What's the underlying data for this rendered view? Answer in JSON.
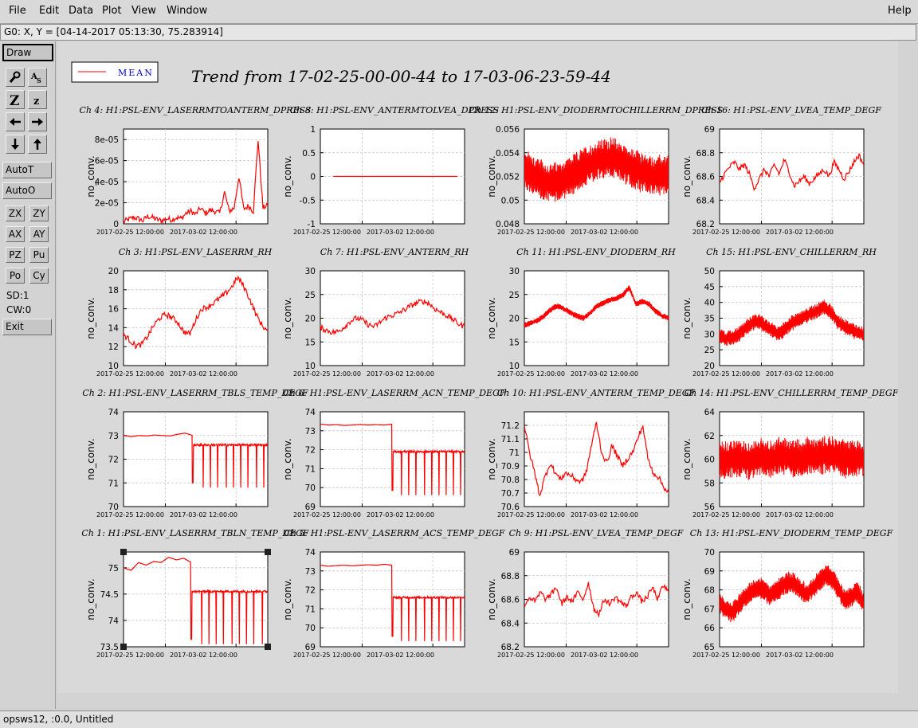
{
  "menu": {
    "items": [
      "File",
      "Edit",
      "Data",
      "Plot",
      "View",
      "Window"
    ],
    "help": "Help"
  },
  "coord_readout": "G0: X, Y = [04-14-2017 05:13:30, 75.283914]",
  "toolbar": {
    "draw": "Draw",
    "autot": "AutoT",
    "autoo": "AutoO",
    "pairs": [
      [
        "ZX",
        "ZY"
      ],
      [
        "AX",
        "AY"
      ],
      [
        "PZ",
        "Pu"
      ],
      [
        "Po",
        "Cy"
      ]
    ],
    "sd": "SD:1",
    "cw": "CW:0",
    "exit": "Exit",
    "icons": [
      "magnify-icon",
      "text-size-icon",
      "zoom-in-icon",
      "zoom-out-icon",
      "arrow-left-icon",
      "arrow-right-icon",
      "arrow-down-icon",
      "arrow-up-icon"
    ]
  },
  "title": "Trend from 17-02-25-00-00-44 to 17-03-06-23-59-44",
  "legend": {
    "label": "MEAN",
    "color": "#ff0000"
  },
  "status": "opsws12, :0.0, Untitled",
  "chart_data": [
    {
      "type": "line",
      "title": "Ch 4: H1:PSL-ENV_LASERRMTOANTERM_DPRESS",
      "ylabel": "no_conv.",
      "ylim": [
        0,
        9e-05
      ],
      "yticks": [
        "0",
        "2e-05",
        "4e-05",
        "6e-05",
        "8e-05"
      ],
      "ytick_values": [
        0,
        2e-05,
        4e-05,
        6e-05,
        8e-05
      ],
      "xticks": [
        "2017-02-25 12:00:00",
        "2017-03-02 12:00:00"
      ],
      "series": [
        {
          "values": [
            2e-06,
            4e-06,
            6e-06,
            5e-06,
            3e-06,
            7e-06,
            6e-06,
            4e-06,
            3e-06,
            5e-06,
            4e-06,
            6e-06,
            5e-06,
            1e-05,
            1.2e-05,
            9e-06,
            1.5e-05,
            1e-05,
            1.3e-05,
            1.2e-05,
            1e-05,
            3e-05,
            1.2e-05,
            1.5e-05,
            4.5e-05,
            1.4e-05,
            1.7e-05,
            1.2e-05,
            8e-05,
            1.5e-05,
            1.8e-05
          ]
        }
      ]
    },
    {
      "type": "line",
      "title": "Ch 8: H1:PSL-ENV_ANTERMTOLVEA_DPRESS",
      "ylabel": "no_conv.",
      "ylim": [
        -1,
        1
      ],
      "yticks": [
        "-1",
        "-0.5",
        "0",
        "0.5",
        "1"
      ],
      "ytick_values": [
        -1,
        -0.5,
        0,
        0.5,
        1
      ],
      "xticks": [
        "2017-02-25 12:00:00",
        "2017-03-02 12:00:00"
      ],
      "x_end": 0.86,
      "series": [
        {
          "values": [
            0,
            0,
            0,
            0,
            0,
            0,
            0,
            0,
            0,
            0
          ]
        }
      ]
    },
    {
      "type": "line",
      "title": "Ch 12: H1:PSL-ENV_DIODERMTOCHILLERRM_DPRESS",
      "ylabel": "no_conv.",
      "ylim": [
        0.048,
        0.056
      ],
      "yticks": [
        "0.048",
        "0.05",
        "0.052",
        "0.054",
        "0.056"
      ],
      "ytick_values": [
        0.048,
        0.05,
        0.052,
        0.054,
        0.056
      ],
      "xticks": [
        "2017-02-25 12:00:00",
        "2017-03-02 12:00:00"
      ],
      "band": [
        0.0015,
        0.0018
      ],
      "series": [
        {
          "values": [
            0.0525,
            0.0522,
            0.0518,
            0.0515,
            0.0514,
            0.0516,
            0.0519,
            0.0523,
            0.0527,
            0.053,
            0.0533,
            0.0535,
            0.0536,
            0.0534,
            0.053,
            0.0527,
            0.0524,
            0.0522,
            0.052,
            0.0521,
            0.0522
          ]
        }
      ]
    },
    {
      "type": "line",
      "title": "Ch 16: H1:PSL-ENV_LVEA_TEMP_DEGF",
      "ylabel": "no_conv.",
      "ylim": [
        68.2,
        69
      ],
      "yticks": [
        "68.2",
        "68.4",
        "68.6",
        "68.8",
        "69"
      ],
      "ytick_values": [
        68.2,
        68.4,
        68.6,
        68.8,
        69
      ],
      "xticks": [
        "2017-02-25 12:00:00",
        "2017-03-02 12:00:00"
      ],
      "series": [
        {
          "values": [
            68.55,
            68.62,
            68.68,
            68.72,
            68.66,
            68.7,
            68.62,
            68.5,
            68.58,
            68.66,
            68.6,
            68.7,
            68.62,
            68.74,
            68.64,
            68.52,
            68.56,
            68.6,
            68.54,
            68.58,
            68.62,
            68.66,
            68.6,
            68.72,
            68.66,
            68.58,
            68.64,
            68.72,
            68.78,
            68.7
          ]
        }
      ]
    },
    {
      "type": "line",
      "title": "Ch 3: H1:PSL-ENV_LASERRM_RH",
      "ylabel": "no_conv.",
      "ylim": [
        10,
        20
      ],
      "yticks": [
        "10",
        "12",
        "14",
        "16",
        "18",
        "20"
      ],
      "ytick_values": [
        10,
        12,
        14,
        16,
        18,
        20
      ],
      "xticks": [
        "2017-02-25 12:00:00",
        "2017-03-02 12:00:00"
      ],
      "series": [
        {
          "values": [
            13.3,
            12.7,
            12.1,
            12.2,
            13.1,
            14.2,
            15.0,
            15.4,
            15.1,
            14.6,
            13.6,
            13.3,
            14.8,
            16.0,
            16.2,
            16.6,
            17.1,
            17.6,
            18.3,
            19.3,
            18.4,
            17.0,
            15.5,
            14.3,
            13.6
          ]
        }
      ]
    },
    {
      "type": "line",
      "title": "Ch 7: H1:PSL-ENV_ANTERM_RH",
      "ylabel": "no_conv.",
      "ylim": [
        10,
        30
      ],
      "yticks": [
        "10",
        "15",
        "20",
        "25",
        "30"
      ],
      "ytick_values": [
        10,
        15,
        20,
        25,
        30
      ],
      "xticks": [
        "2017-02-25 12:00:00",
        "2017-03-02 12:00:00"
      ],
      "series": [
        {
          "values": [
            18.0,
            17.5,
            17.0,
            17.2,
            18.2,
            19.4,
            20.0,
            19.6,
            18.6,
            18.2,
            19.2,
            20.2,
            20.6,
            21.1,
            21.8,
            22.6,
            23.2,
            23.6,
            23.2,
            22.0,
            21.3,
            20.6,
            19.8,
            18.8,
            18.2
          ]
        }
      ]
    },
    {
      "type": "line",
      "title": "Ch 11: H1:PSL-ENV_DIODERM_RH",
      "ylabel": "no_conv.",
      "ylim": [
        10,
        30
      ],
      "yticks": [
        "10",
        "15",
        "20",
        "25",
        "30"
      ],
      "ytick_values": [
        10,
        15,
        20,
        25,
        30
      ],
      "xticks": [
        "2017-02-25 12:00:00",
        "2017-03-02 12:00:00"
      ],
      "band": [
        0.6,
        0.6
      ],
      "series": [
        {
          "values": [
            18.5,
            19.0,
            19.5,
            20.5,
            21.8,
            22.6,
            22.0,
            21.2,
            20.5,
            20.0,
            21.0,
            22.5,
            23.2,
            23.8,
            24.2,
            24.8,
            26.5,
            23.0,
            23.5,
            23.0,
            21.5,
            20.5,
            20.0
          ]
        }
      ]
    },
    {
      "type": "line",
      "title": "Ch 15: H1:PSL-ENV_CHILLERRM_RH",
      "ylabel": "no_conv.",
      "ylim": [
        20,
        50
      ],
      "yticks": [
        "20",
        "25",
        "30",
        "35",
        "40",
        "45",
        "50"
      ],
      "ytick_values": [
        20,
        25,
        30,
        35,
        40,
        45,
        50
      ],
      "xticks": [
        "2017-02-25 12:00:00",
        "2017-03-02 12:00:00"
      ],
      "band": [
        2.2,
        2.6
      ],
      "series": [
        {
          "values": [
            29.5,
            28.5,
            29.0,
            30.0,
            32.0,
            33.5,
            34.0,
            32.5,
            31.0,
            30.0,
            31.5,
            33.5,
            34.5,
            35.5,
            36.5,
            37.5,
            38.5,
            37.0,
            34.0,
            32.5,
            31.5,
            30.5,
            30.0
          ]
        }
      ]
    },
    {
      "type": "line",
      "title": "Ch 2: H1:PSL-ENV_LASERRM_TBLS_TEMP_DEGF",
      "ylabel": "no_conv.",
      "ylim": [
        70,
        74
      ],
      "yticks": [
        "70",
        "71",
        "72",
        "73",
        "74"
      ],
      "ytick_values": [
        70,
        71,
        72,
        73,
        74
      ],
      "xticks": [
        "2017-02-25 12:00:00",
        "2017-03-02 12:00:00"
      ],
      "step": {
        "x": 0.48,
        "after": 72.6,
        "dips": [
          0.55,
          0.6,
          0.65,
          0.71,
          0.76,
          0.81,
          0.86,
          0.92,
          0.97
        ],
        "dip_to": 70.8
      },
      "series": [
        {
          "values": [
            73.0,
            72.95,
            73.0,
            72.98,
            73.02,
            73.0,
            72.98,
            73.05,
            73.1,
            73.0
          ]
        }
      ]
    },
    {
      "type": "line",
      "title": "Ch 6: H1:PSL-ENV_LASERRM_ACN_TEMP_DEGF",
      "ylabel": "no_conv.",
      "ylim": [
        69,
        74
      ],
      "yticks": [
        "69",
        "70",
        "71",
        "72",
        "73",
        "74"
      ],
      "ytick_values": [
        69,
        70,
        71,
        72,
        73,
        74
      ],
      "xticks": [
        "2017-02-25 12:00:00",
        "2017-03-02 12:00:00"
      ],
      "step": {
        "x": 0.5,
        "after": 71.9,
        "dips": [
          0.56,
          0.61,
          0.66,
          0.72,
          0.77,
          0.82,
          0.87,
          0.92,
          0.97
        ],
        "dip_to": 69.6
      },
      "series": [
        {
          "values": [
            73.35,
            73.3,
            73.32,
            73.28,
            73.3,
            73.33,
            73.3,
            73.32,
            73.3,
            73.35
          ]
        }
      ]
    },
    {
      "type": "line",
      "title": "Ch 10: H1:PSL-ENV_ANTERM_TEMP_DEGF",
      "ylabel": "no_conv.",
      "ylim": [
        70.6,
        71.3
      ],
      "yticks": [
        "70.6",
        "70.7",
        "70.8",
        "70.9",
        "71",
        "71.1",
        "71.2"
      ],
      "ytick_values": [
        70.6,
        70.7,
        70.8,
        70.9,
        71,
        71.1,
        71.2
      ],
      "xticks": [
        "2017-02-25 12:00:00",
        "2017-03-02 12:00:00"
      ],
      "series": [
        {
          "values": [
            71.2,
            71.0,
            70.85,
            70.68,
            70.82,
            70.92,
            70.85,
            70.8,
            70.85,
            70.83,
            70.8,
            70.78,
            70.85,
            71.05,
            71.22,
            71.0,
            70.92,
            71.05,
            70.98,
            70.9,
            70.95,
            71.0,
            71.1,
            71.2,
            70.95,
            70.85,
            70.82,
            70.75,
            70.7
          ]
        }
      ]
    },
    {
      "type": "line",
      "title": "Ch 14: H1:PSL-ENV_CHILLERRM_TEMP_DEGF",
      "ylabel": "no_conv.",
      "ylim": [
        56,
        64
      ],
      "yticks": [
        "56",
        "58",
        "60",
        "62",
        "64"
      ],
      "ytick_values": [
        56,
        58,
        60,
        62,
        64
      ],
      "xticks": [
        "2017-02-25 12:00:00",
        "2017-03-02 12:00:00"
      ],
      "band": [
        1.4,
        1.7
      ],
      "series": [
        {
          "values": [
            60.0,
            59.9,
            60.1,
            60.0,
            59.8,
            60.2,
            60.1,
            60.0,
            60.3,
            60.2,
            60.0,
            60.1,
            60.3,
            60.2,
            60.4,
            60.3,
            60.1,
            60.0,
            60.1,
            60.0
          ]
        }
      ]
    },
    {
      "type": "line",
      "title": "Ch 1: H1:PSL-ENV_LASERRM_TBLN_TEMP_DEGF",
      "ylabel": "no_conv.",
      "ylim": [
        73.5,
        75.3
      ],
      "yticks": [
        "73.5",
        "74",
        "74.5",
        "75"
      ],
      "ytick_values": [
        73.5,
        74,
        74.5,
        75
      ],
      "xticks": [
        "2017-02-25 12:00:00",
        "2017-03-02 12:00:00"
      ],
      "selected": true,
      "step": {
        "x": 0.47,
        "after": 74.55,
        "dips": [
          0.54,
          0.59,
          0.64,
          0.69,
          0.75,
          0.8,
          0.85,
          0.9,
          0.96
        ],
        "dip_to": 73.55
      },
      "series": [
        {
          "values": [
            75.0,
            74.95,
            75.1,
            75.05,
            75.12,
            75.1,
            75.2,
            75.15,
            75.18,
            75.1
          ]
        }
      ]
    },
    {
      "type": "line",
      "title": "Ch 5: H1:PSL-ENV_LASERRM_ACS_TEMP_DEGF",
      "ylabel": "no_conv.",
      "ylim": [
        69,
        74
      ],
      "yticks": [
        "69",
        "70",
        "71",
        "72",
        "73",
        "74"
      ],
      "ytick_values": [
        69,
        70,
        71,
        72,
        73,
        74
      ],
      "xticks": [
        "2017-02-25 12:00:00",
        "2017-03-02 12:00:00"
      ],
      "step": {
        "x": 0.5,
        "after": 71.6,
        "dips": [
          0.56,
          0.61,
          0.66,
          0.72,
          0.77,
          0.82,
          0.87,
          0.92,
          0.97
        ],
        "dip_to": 69.3
      },
      "series": [
        {
          "values": [
            73.3,
            73.25,
            73.28,
            73.3,
            73.27,
            73.3,
            73.32,
            73.3,
            73.35,
            73.3
          ]
        }
      ]
    },
    {
      "type": "line",
      "title": "Ch 9: H1:PSL-ENV_LVEA_TEMP_DEGF",
      "ylabel": "no_conv.",
      "ylim": [
        68.2,
        69
      ],
      "yticks": [
        "68.2",
        "68.4",
        "68.6",
        "68.8",
        "69"
      ],
      "ytick_values": [
        68.2,
        68.4,
        68.6,
        68.8,
        69
      ],
      "xticks": [
        "2017-02-25 12:00:00",
        "2017-03-02 12:00:00"
      ],
      "series": [
        {
          "values": [
            68.55,
            68.62,
            68.58,
            68.66,
            68.6,
            68.64,
            68.7,
            68.56,
            68.62,
            68.58,
            68.66,
            68.6,
            68.74,
            68.52,
            68.48,
            68.6,
            68.56,
            68.62,
            68.58,
            68.54,
            68.62,
            68.66,
            68.58,
            68.62,
            68.7,
            68.6,
            68.72,
            68.66
          ]
        }
      ]
    },
    {
      "type": "line",
      "title": "Ch 13: H1:PSL-ENV_DIODERM_TEMP_DEGF",
      "ylabel": "no_conv.",
      "ylim": [
        65,
        70
      ],
      "yticks": [
        "65",
        "66",
        "67",
        "68",
        "69",
        "70"
      ],
      "ytick_values": [
        65,
        66,
        67,
        68,
        69,
        70
      ],
      "xticks": [
        "2017-02-25 12:00:00",
        "2017-03-02 12:00:00"
      ],
      "band": [
        0.5,
        0.6
      ],
      "series": [
        {
          "values": [
            67.3,
            67.0,
            66.8,
            67.2,
            67.6,
            67.9,
            68.1,
            68.0,
            67.7,
            67.9,
            68.2,
            68.4,
            68.3,
            68.0,
            67.8,
            68.2,
            68.5,
            68.8,
            68.6,
            68.0,
            67.4,
            67.6,
            67.9,
            67.2
          ]
        }
      ]
    }
  ]
}
